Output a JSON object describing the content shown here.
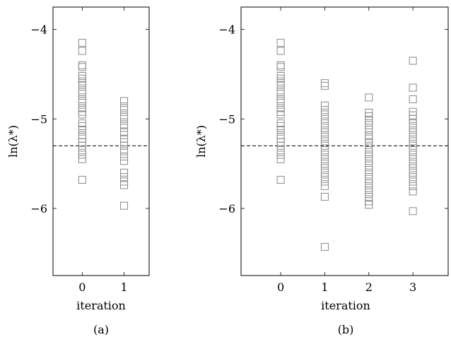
{
  "chart_data": [
    {
      "type": "scatter",
      "caption": "(a)",
      "xlabel": "iteration",
      "ylabel": "ln(λ*)",
      "xlim": [
        -0.7,
        1.6
      ],
      "ylim": [
        -6.75,
        -3.75
      ],
      "xticks": [
        0,
        1
      ],
      "yticks": [
        -6,
        -5,
        -4
      ],
      "ytick_labels": [
        "−6",
        "−5",
        "−4"
      ],
      "reference_line": {
        "y": -5.3,
        "style": "dashed"
      },
      "marker": "square",
      "series": [
        {
          "x": 0,
          "y": [
            -4.15,
            -4.24,
            -4.4,
            -4.42,
            -4.52,
            -4.55,
            -4.58,
            -4.62,
            -4.68,
            -4.72,
            -4.78,
            -4.82,
            -4.88,
            -4.92,
            -4.95,
            -5.05,
            -5.08,
            -5.12,
            -5.18,
            -5.22,
            -5.26,
            -5.3,
            -5.35,
            -5.4,
            -5.45,
            -5.68
          ]
        },
        {
          "x": 1,
          "y": [
            -4.8,
            -4.86,
            -4.9,
            -4.96,
            -5.0,
            -5.06,
            -5.1,
            -5.15,
            -5.22,
            -5.26,
            -5.3,
            -5.36,
            -5.42,
            -5.47,
            -5.6,
            -5.65,
            -5.7,
            -5.74,
            -5.97
          ]
        }
      ]
    },
    {
      "type": "scatter",
      "caption": "(b)",
      "xlabel": "iteration",
      "ylabel": "ln(λ*)",
      "xlim": [
        -0.9,
        3.8
      ],
      "ylim": [
        -6.75,
        -3.75
      ],
      "xticks": [
        0,
        1,
        2,
        3
      ],
      "yticks": [
        -6,
        -5,
        -4
      ],
      "ytick_labels": [
        "−6",
        "−5",
        "−4"
      ],
      "reference_line": {
        "y": -5.3,
        "style": "dashed"
      },
      "marker": "square",
      "series": [
        {
          "x": 0,
          "y": [
            -4.15,
            -4.24,
            -4.4,
            -4.42,
            -4.52,
            -4.55,
            -4.58,
            -4.62,
            -4.68,
            -4.72,
            -4.78,
            -4.82,
            -4.88,
            -4.92,
            -4.95,
            -5.05,
            -5.08,
            -5.12,
            -5.18,
            -5.22,
            -5.26,
            -5.3,
            -5.35,
            -5.4,
            -5.45,
            -5.68
          ]
        },
        {
          "x": 1,
          "y": [
            -4.6,
            -4.63,
            -4.85,
            -4.9,
            -4.95,
            -5.0,
            -5.05,
            -5.1,
            -5.15,
            -5.2,
            -5.25,
            -5.3,
            -5.35,
            -5.4,
            -5.45,
            -5.5,
            -5.55,
            -5.6,
            -5.65,
            -5.7,
            -5.75,
            -5.87,
            -6.43
          ]
        },
        {
          "x": 2,
          "y": [
            -4.76,
            -4.93,
            -4.97,
            -5.02,
            -5.07,
            -5.12,
            -5.18,
            -5.22,
            -5.27,
            -5.32,
            -5.37,
            -5.42,
            -5.47,
            -5.52,
            -5.57,
            -5.62,
            -5.67,
            -5.72,
            -5.77,
            -5.82,
            -5.87,
            -5.92,
            -5.96
          ]
        },
        {
          "x": 3,
          "y": [
            -4.35,
            -4.65,
            -4.78,
            -4.92,
            -4.96,
            -5.0,
            -5.05,
            -5.1,
            -5.15,
            -5.2,
            -5.25,
            -5.3,
            -5.35,
            -5.4,
            -5.45,
            -5.5,
            -5.55,
            -5.6,
            -5.65,
            -5.7,
            -5.75,
            -5.81,
            -6.03
          ]
        }
      ]
    }
  ]
}
